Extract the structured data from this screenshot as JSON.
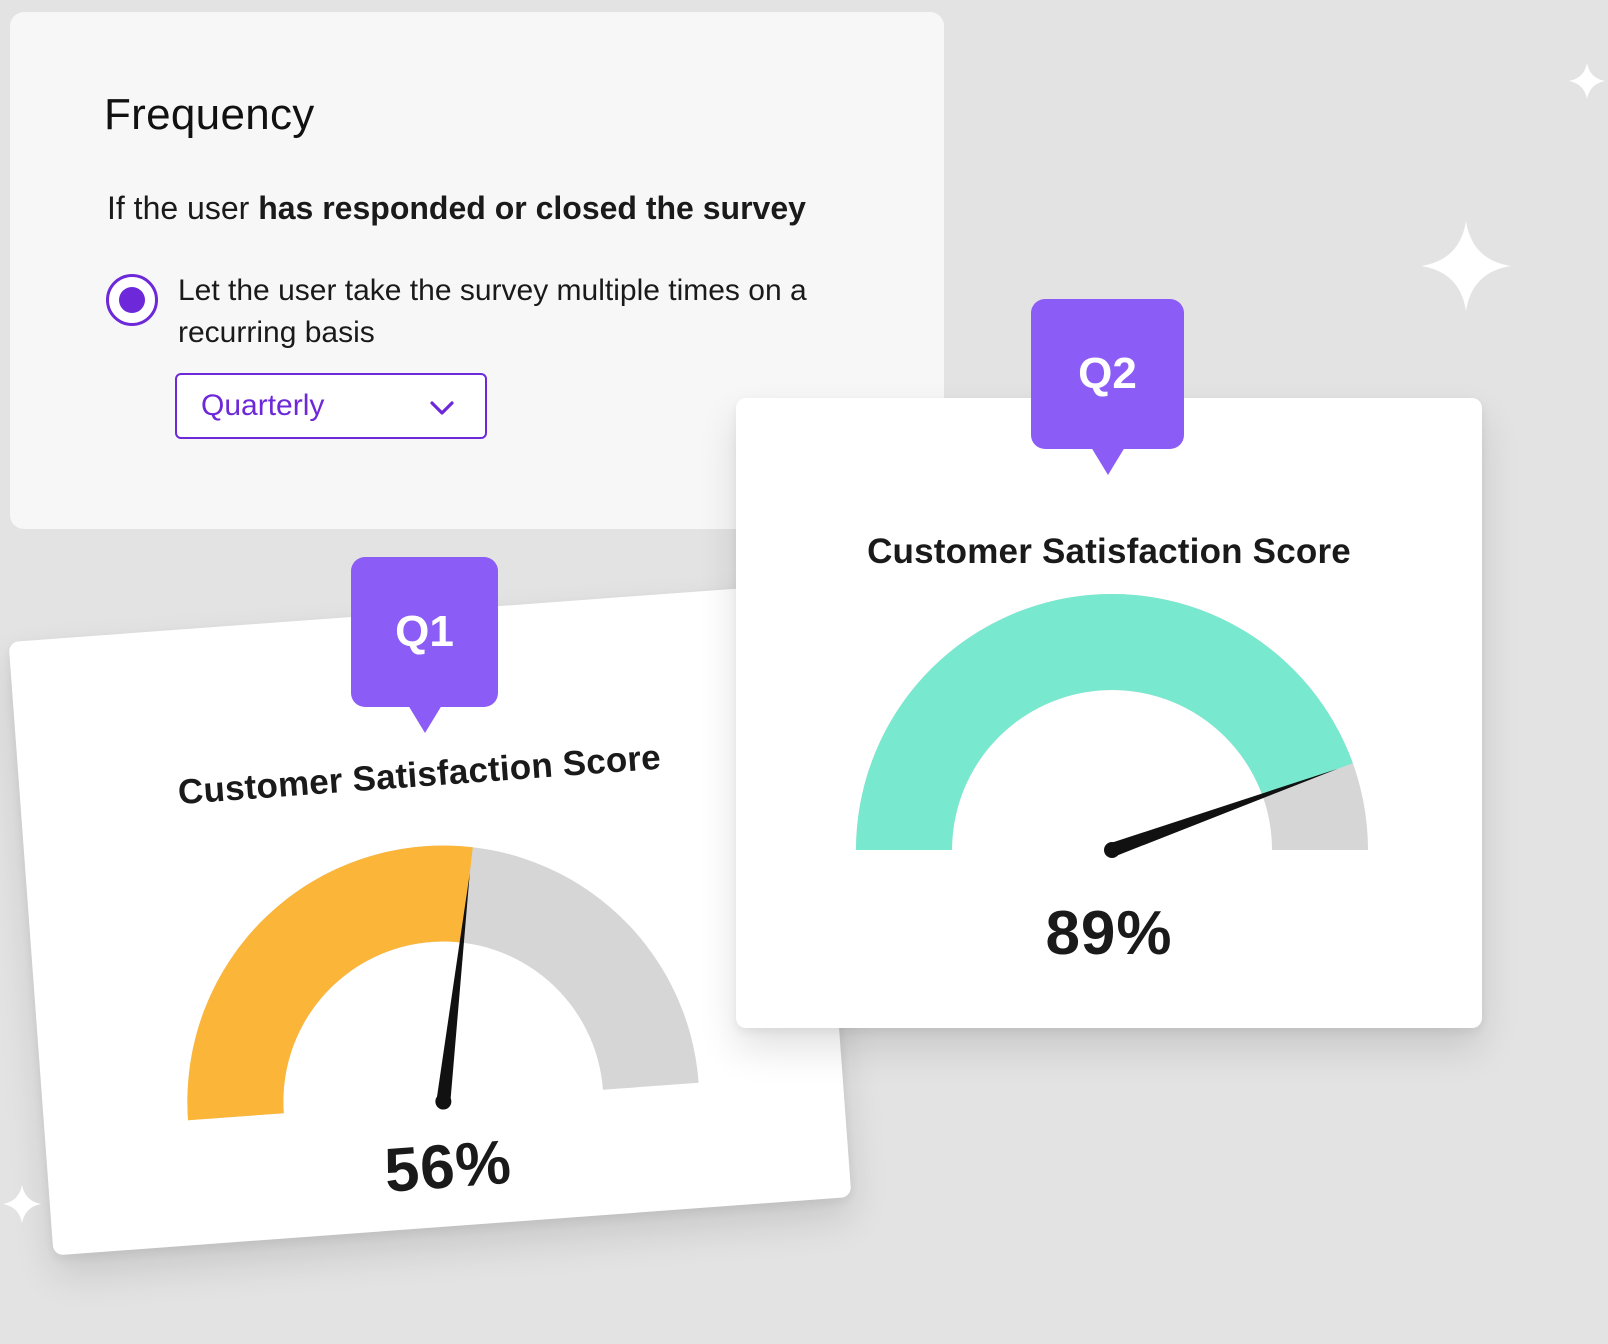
{
  "frequency": {
    "title": "Frequency",
    "condition_prefix": "If the user ",
    "condition_bold": "has responded or closed the survey",
    "option_label": "Let the user take the survey multiple times on a recurring basis",
    "option_selected": true,
    "select_value": "Quarterly",
    "accent_color": "#6d28d9"
  },
  "cards": [
    {
      "badge": "Q1",
      "title": "Customer Satisfaction Score",
      "value_label": "56%",
      "value": 56,
      "fill_color": "#fbb63a",
      "track_color": "#d6d6d6"
    },
    {
      "badge": "Q2",
      "title": "Customer Satisfaction Score",
      "value_label": "89%",
      "value": 89,
      "fill_color": "#78e8cf",
      "track_color": "#d6d6d6"
    }
  ],
  "badge_color": "#8b5cf6",
  "icons": {
    "chevron": "chevron-down-icon",
    "sparkle": "sparkle-icon"
  }
}
